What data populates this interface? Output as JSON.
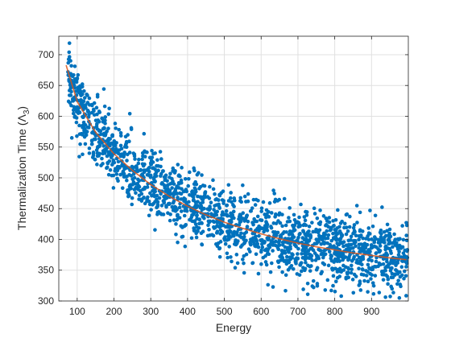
{
  "chart_data": {
    "type": "scatter",
    "title": "",
    "xlabel": "Energy",
    "ylabel_prefix": "Thermalization Time (Λ",
    "ylabel_subscript": "3",
    "ylabel_suffix": ")",
    "xlim": [
      50,
      1000
    ],
    "ylim": [
      300,
      730
    ],
    "xticks": [
      100,
      200,
      300,
      400,
      500,
      600,
      700,
      800,
      900
    ],
    "yticks": [
      300,
      350,
      400,
      450,
      500,
      550,
      600,
      650,
      700
    ],
    "xtick_labels": [
      "100",
      "200",
      "300",
      "400",
      "500",
      "600",
      "700",
      "800",
      "900"
    ],
    "ytick_labels": [
      "300",
      "350",
      "400",
      "450",
      "500",
      "550",
      "600",
      "650",
      "700"
    ],
    "grid": true,
    "box": true,
    "colors": {
      "points": "#0072BD",
      "fit": "#D95319",
      "grid": "#e0e0e0",
      "axes": "#262626"
    },
    "series": [
      {
        "kind": "scatter",
        "x": [
          75,
          78,
          80,
          82,
          84,
          86,
          88,
          90,
          92,
          94,
          96,
          98,
          100,
          103,
          106,
          110,
          114,
          118,
          122,
          127,
          133,
          140,
          148,
          156,
          165,
          175,
          186,
          198,
          211,
          225,
          240,
          256,
          273,
          291,
          310,
          330,
          351,
          373,
          396,
          420,
          445,
          471,
          498,
          526,
          555,
          585,
          616,
          648,
          681,
          715,
          750,
          786,
          823,
          861,
          900,
          940,
          975,
          995
        ],
        "y": [
          672,
          704,
          660,
          690,
          640,
          655,
          625,
          610,
          650,
          600,
          628,
          590,
          615,
          605,
          585,
          620,
          570,
          590,
          555,
          575,
          540,
          560,
          530,
          550,
          520,
          540,
          505,
          525,
          495,
          510,
          480,
          500,
          465,
          485,
          470,
          455,
          475,
          440,
          460,
          430,
          450,
          420,
          440,
          410,
          430,
          405,
          420,
          395,
          410,
          385,
          400,
          380,
          395,
          375,
          390,
          370,
          380,
          365
        ]
      },
      {
        "kind": "fit",
        "x": [
          70,
          100,
          150,
          200,
          250,
          300,
          350,
          400,
          450,
          500,
          550,
          600,
          650,
          700,
          750,
          800,
          850,
          900,
          950,
          995
        ],
        "y": [
          683,
          624,
          574,
          539,
          512,
          489,
          470,
          454,
          440,
          428,
          418,
          409,
          401,
          394,
          388,
          383,
          378,
          374,
          370,
          367
        ]
      }
    ],
    "scatter_noise": {
      "count": 1800,
      "spread": 28
    }
  }
}
